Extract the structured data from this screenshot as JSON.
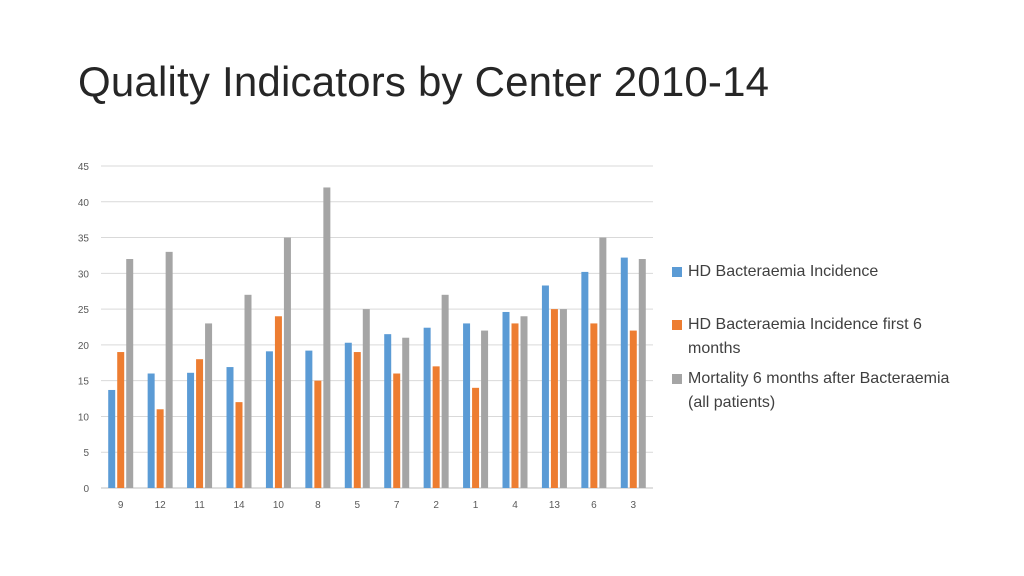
{
  "slide": {
    "title": "Quality Indicators by Center 2010-14"
  },
  "chart_data": {
    "type": "bar",
    "categories": [
      "9",
      "12",
      "11",
      "14",
      "10",
      "8",
      "5",
      "7",
      "2",
      "1",
      "4",
      "13",
      "6",
      "3"
    ],
    "series": [
      {
        "name": "HD Bacteraemia Incidence",
        "color": "#5b9bd5",
        "values": [
          13.7,
          16,
          16.1,
          16.9,
          19.1,
          19.2,
          20.3,
          21.5,
          22.4,
          23,
          24.6,
          28.3,
          30.2,
          32.2
        ]
      },
      {
        "name": "HD Bacteraemia Incidence first 6 months",
        "color": "#ed7d31",
        "values": [
          19,
          11,
          18,
          12,
          24,
          15,
          19,
          16,
          17,
          14,
          23,
          25,
          23,
          22
        ]
      },
      {
        "name": "Mortality 6 months after Bacteraemia (all patients)",
        "color": "#a5a5a5",
        "values": [
          32,
          33,
          23,
          27,
          35,
          42,
          25,
          21,
          27,
          22,
          24,
          25,
          35,
          32
        ]
      }
    ],
    "title": "",
    "xlabel": "",
    "ylabel": "",
    "ylim": [
      0,
      45
    ],
    "yticks": [
      0,
      5,
      10,
      15,
      20,
      25,
      30,
      35,
      40,
      45
    ],
    "grid": true,
    "legend_position": "right"
  }
}
